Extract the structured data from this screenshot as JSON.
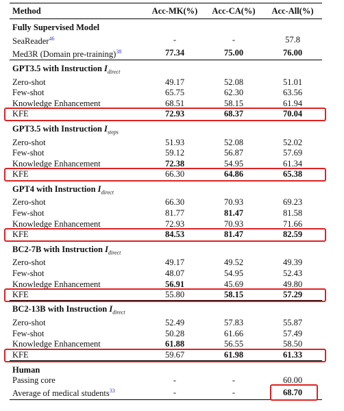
{
  "header": [
    "Method",
    "Acc-MK(%)",
    "Acc-CA(%)",
    "Acc-All(%)"
  ],
  "sections": [
    {
      "title": {
        "text": "Fully Supervised Model"
      },
      "rows": [
        {
          "method": "SeaReader",
          "ref": "46",
          "values": [
            "-",
            "-",
            "57.8"
          ]
        },
        {
          "method": "Med3R (Domain pre-training)",
          "ref": "38",
          "values": [
            "77.34",
            "75.00",
            "76.00"
          ]
        }
      ]
    },
    {
      "title": {
        "text": "GPT3.5 with Instruction",
        "symbol": "I",
        "subscript": "direct"
      },
      "rows": [
        {
          "method": "Zero-shot",
          "values": [
            "49.17",
            "52.08",
            "51.01"
          ]
        },
        {
          "method": "Few-shot",
          "values": [
            "65.75",
            "62.30",
            "63.56"
          ]
        },
        {
          "method": "Knowledge Enhancement",
          "values": [
            "68.51",
            "58.15",
            "61.94"
          ]
        },
        {
          "method": "KFE",
          "values": [
            "72.93",
            "68.37",
            "70.04"
          ]
        }
      ]
    },
    {
      "title": {
        "text": "GPT3.5 with Instruction",
        "symbol": "I",
        "subscript": "steps"
      },
      "rows": [
        {
          "method": "Zero-shot",
          "values": [
            "51.93",
            "52.08",
            "52.02"
          ]
        },
        {
          "method": "Few-shot",
          "values": [
            "59.12",
            "56.87",
            "57.69"
          ]
        },
        {
          "method": "Knowledge Enhancement",
          "values": [
            "72.38",
            "54.95",
            "61.34"
          ]
        },
        {
          "method": "KFE",
          "values": [
            "66.30",
            "64.86",
            "65.38"
          ]
        }
      ]
    },
    {
      "title": {
        "text": "GPT4 with Instruction",
        "symbol": "I",
        "subscript": "direct"
      },
      "rows": [
        {
          "method": "Zero-shot",
          "values": [
            "66.30",
            "70.93",
            "69.23"
          ]
        },
        {
          "method": "Few-shot",
          "values": [
            "81.77",
            "81.47",
            "81.58"
          ]
        },
        {
          "method": "Knowledge Enhancement",
          "values": [
            "72.93",
            "70.93",
            "71.66"
          ]
        },
        {
          "method": "KFE",
          "values": [
            "84.53",
            "81.47",
            "82.59"
          ]
        }
      ]
    },
    {
      "title": {
        "text": "BC2-7B with Instruction",
        "symbol": "I",
        "subscript": "direct"
      },
      "rows": [
        {
          "method": "Zero-shot",
          "values": [
            "49.17",
            "49.52",
            "49.39"
          ]
        },
        {
          "method": "Few-shot",
          "values": [
            "48.07",
            "54.95",
            "52.43"
          ]
        },
        {
          "method": "Knowledge Enhancement",
          "values": [
            "56.91",
            "45.69",
            "49.80"
          ]
        },
        {
          "method": "KFE",
          "values": [
            "55.80",
            "58.15",
            "57.29"
          ]
        }
      ]
    },
    {
      "title": {
        "text": "BC2-13B with Instruction",
        "symbol": "I",
        "subscript": "direct"
      },
      "rows": [
        {
          "method": "Zero-shot",
          "values": [
            "52.49",
            "57.83",
            "55.87"
          ]
        },
        {
          "method": "Few-shot",
          "values": [
            "50.28",
            "61.66",
            "57.49"
          ]
        },
        {
          "method": "Knowledge Enhancement",
          "values": [
            "61.88",
            "56.55",
            "58.50"
          ]
        },
        {
          "method": "KFE",
          "values": [
            "59.67",
            "61.98",
            "61.33"
          ]
        }
      ]
    },
    {
      "title": {
        "text": "Human"
      },
      "rows": [
        {
          "method": "Passing core",
          "values": [
            "-",
            "-",
            "60.00"
          ]
        },
        {
          "method": "Average of medical students",
          "ref": "33",
          "values": [
            "-",
            "-",
            "68.70"
          ]
        }
      ]
    }
  ]
}
